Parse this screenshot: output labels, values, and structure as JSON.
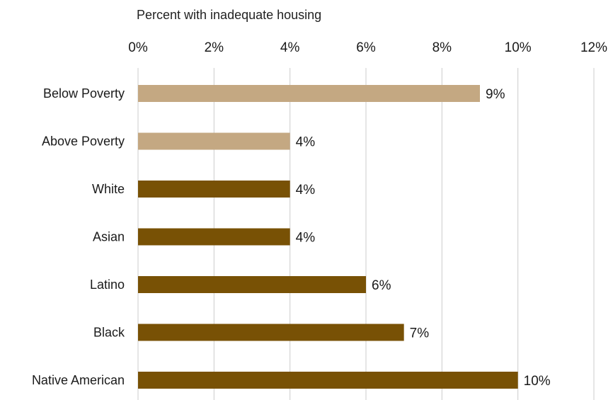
{
  "chart_data": {
    "type": "bar",
    "orientation": "horizontal",
    "title": "",
    "xlabel": "Percent with inadequate housing",
    "ylabel": "",
    "x_axis_position": "top",
    "xlim": [
      0,
      12
    ],
    "x_ticks": [
      0,
      2,
      4,
      6,
      8,
      10,
      12
    ],
    "x_tick_labels": [
      "0%",
      "2%",
      "4%",
      "6%",
      "8%",
      "10%",
      "12%"
    ],
    "grid": "vertical",
    "legend": "none",
    "categories": [
      "Below Poverty",
      "Above Poverty",
      "White",
      "Asian",
      "Latino",
      "Black",
      "Native American"
    ],
    "values": [
      9,
      4,
      4,
      4,
      6,
      7,
      10
    ],
    "data_labels": [
      "9%",
      "4%",
      "4%",
      "4%",
      "6%",
      "7%",
      "10%"
    ],
    "bar_colors": [
      "#c4a882",
      "#c4a882",
      "#785105",
      "#785105",
      "#785105",
      "#785105",
      "#785105"
    ],
    "gridline_color": "#cccccc"
  }
}
